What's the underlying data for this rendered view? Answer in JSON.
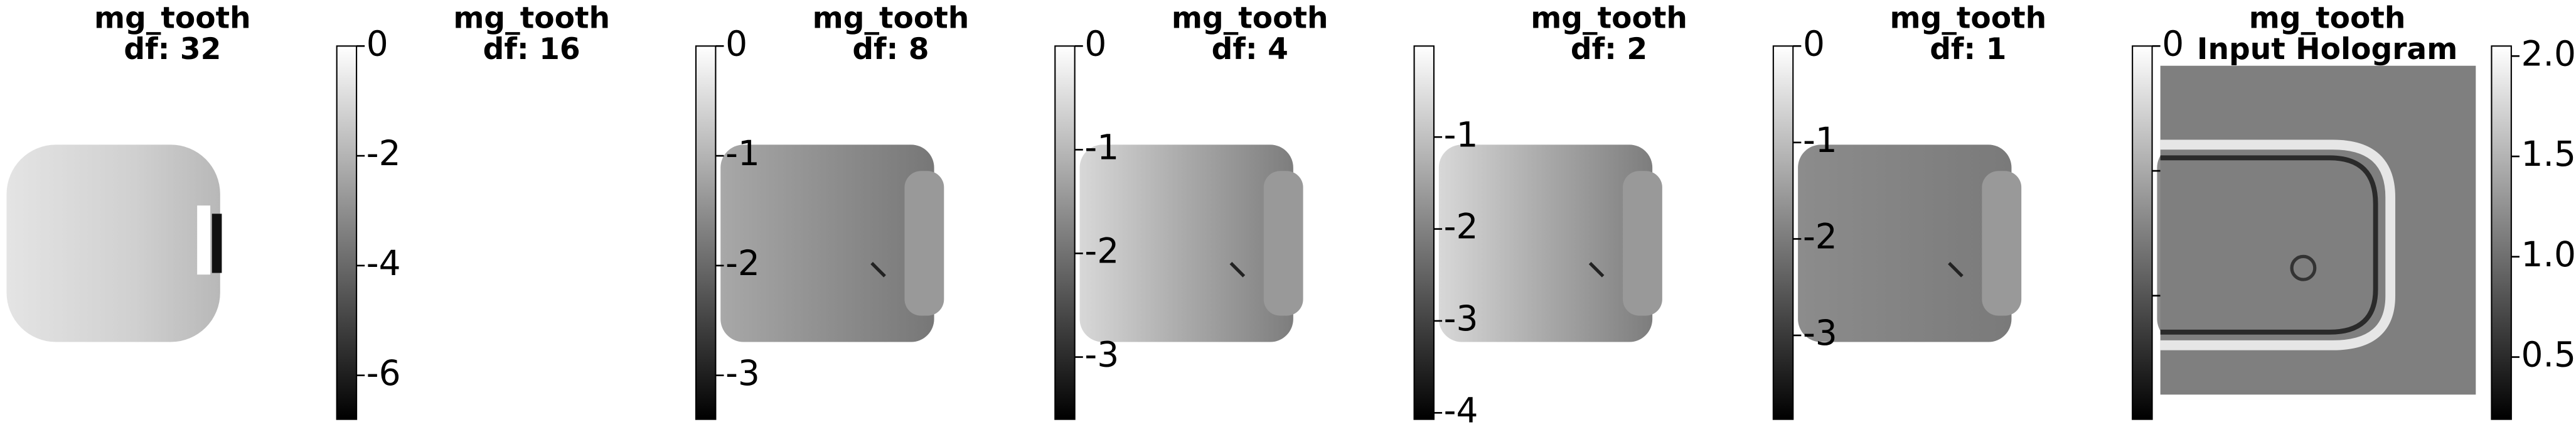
{
  "chart_data": [
    {
      "type": "image",
      "title": "mg_tooth",
      "subtitle": "df: 32",
      "colormap": "gray",
      "clim": [
        -6.8,
        0
      ],
      "cticks": [
        0,
        -2,
        -4,
        -6
      ]
    },
    {
      "type": "image",
      "title": "mg_tooth",
      "subtitle": "df: 16",
      "colormap": "gray",
      "clim": [
        -3.4,
        0
      ],
      "cticks": [
        0,
        -1,
        -2,
        -3
      ]
    },
    {
      "type": "image",
      "title": "mg_tooth",
      "subtitle": "df: 8",
      "colormap": "gray",
      "clim": [
        -3.6,
        0
      ],
      "cticks": [
        0,
        -1,
        -2,
        -3
      ]
    },
    {
      "type": "image",
      "title": "mg_tooth",
      "subtitle": "df: 4",
      "colormap": "gray",
      "clim": [
        -4.07,
        -0.01
      ],
      "cticks": [
        -1,
        -2,
        -3,
        -4
      ]
    },
    {
      "type": "image",
      "title": "mg_tooth",
      "subtitle": "df: 2",
      "colormap": "gray",
      "clim": [
        -3.87,
        0
      ],
      "cticks": [
        0,
        -1,
        -2,
        -3
      ]
    },
    {
      "type": "image",
      "title": "mg_tooth",
      "subtitle": "df: 1",
      "colormap": "gray",
      "clim": [
        -2.99,
        0
      ],
      "cticks": [
        0,
        -1,
        -2
      ]
    },
    {
      "type": "image",
      "title": "mg_tooth",
      "subtitle": "Input Hologram",
      "colormap": "gray",
      "clim": [
        0.19,
        2.05
      ],
      "cticks": [
        {
          "value": 2,
          "label": "2.0"
        },
        1.5,
        {
          "value": 1,
          "label": "1.0"
        },
        0.5
      ]
    }
  ]
}
